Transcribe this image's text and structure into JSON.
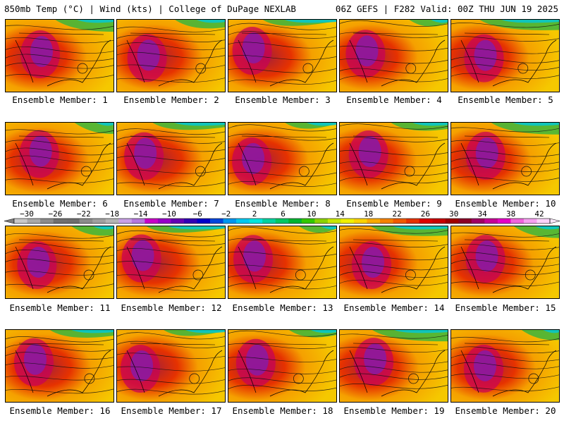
{
  "header": {
    "title_left": "850mb Temp (°C) | Wind (kts) | College of DuPage NEXLAB",
    "title_right": "06Z GEFS | F282 Valid: 00Z THU JUN 19 2025"
  },
  "panels": [
    {
      "label": "Ensemble Member: 1"
    },
    {
      "label": "Ensemble Member: 2"
    },
    {
      "label": "Ensemble Member: 3"
    },
    {
      "label": "Ensemble Member: 4"
    },
    {
      "label": "Ensemble Member: 5"
    },
    {
      "label": "Ensemble Member: 6"
    },
    {
      "label": "Ensemble Member: 7"
    },
    {
      "label": "Ensemble Member: 8"
    },
    {
      "label": "Ensemble Member: 9"
    },
    {
      "label": "Ensemble Member: 10"
    },
    {
      "label": "Ensemble Member: 11"
    },
    {
      "label": "Ensemble Member: 12"
    },
    {
      "label": "Ensemble Member: 13"
    },
    {
      "label": "Ensemble Member: 14"
    },
    {
      "label": "Ensemble Member: 15"
    },
    {
      "label": "Ensemble Member: 16"
    },
    {
      "label": "Ensemble Member: 17"
    },
    {
      "label": "Ensemble Member: 18"
    },
    {
      "label": "Ensemble Member: 19"
    },
    {
      "label": "Ensemble Member: 20"
    }
  ],
  "colorbar": {
    "tick_labels": [
      "−30",
      "−26",
      "−22",
      "−18",
      "−14",
      "−10",
      "−6",
      "−2",
      "2",
      "6",
      "10",
      "14",
      "18",
      "22",
      "26",
      "30",
      "34",
      "38",
      "42"
    ],
    "colors": [
      "#c8c8c8",
      "#a8a8a8",
      "#8c8c8c",
      "#707070",
      "#6e6e6e",
      "#8c8c8c",
      "#a0a0a0",
      "#b4b4b4",
      "#c8a0e6",
      "#b478dc",
      "#c800c8",
      "#9600c8",
      "#6400b4",
      "#3200b4",
      "#0000c8",
      "#0046dc",
      "#0096f0",
      "#00c8f0",
      "#00e6dc",
      "#00d2a0",
      "#00c864",
      "#00b432",
      "#32c800",
      "#8cd200",
      "#c8e600",
      "#f0f000",
      "#fad200",
      "#faaa00",
      "#f58200",
      "#f05a00",
      "#e63200",
      "#dc0000",
      "#c80000",
      "#a00000",
      "#8c0028",
      "#a00064",
      "#c80096",
      "#e600c8",
      "#f064dc",
      "#f5a0f0",
      "#fad2fa"
    ]
  },
  "colors": {
    "hot_core": "#8c1aa0",
    "warm": "#e63200",
    "mild": "#f5a000",
    "cool": "#3cb43c",
    "cold": "#00c8dc"
  }
}
